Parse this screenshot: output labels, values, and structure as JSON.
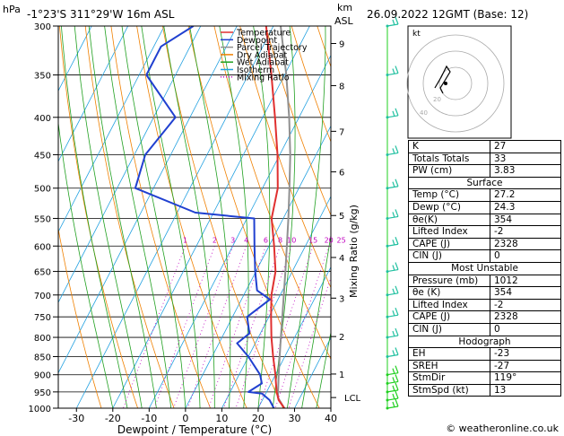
{
  "header": {
    "pressure_unit": "hPa",
    "location": "-1°23'S 311°29'W 16m ASL",
    "height_unit": "km",
    "height_unit2": "ASL",
    "datetime": "26.09.2022 12GMT (Base: 12)"
  },
  "chart_data": {
    "type": "skew-t log-p",
    "xlabel": "Dewpoint / Temperature (°C)",
    "ylabel": "hPa",
    "mixing_ratio_axis_label": "Mixing Ratio (g/kg)",
    "xlim": [
      -35,
      40
    ],
    "ylim": [
      1000,
      300
    ],
    "skew_degC_per_ln_p": 45,
    "x_ticks": [
      -30,
      -20,
      -10,
      0,
      10,
      20,
      30,
      40
    ],
    "pressure_ticks": [
      300,
      350,
      400,
      450,
      500,
      550,
      600,
      650,
      700,
      750,
      800,
      850,
      900,
      950,
      1000
    ],
    "height_ticks": [
      {
        "km": 9,
        "p": 317
      },
      {
        "km": 8,
        "p": 362
      },
      {
        "km": 7,
        "p": 418
      },
      {
        "km": 6,
        "p": 475
      },
      {
        "km": 5,
        "p": 545
      },
      {
        "km": 4,
        "p": 622
      },
      {
        "km": 3,
        "p": 707
      },
      {
        "km": 2,
        "p": 798
      },
      {
        "km": 1,
        "p": 898
      }
    ],
    "lcl": {
      "label": "LCL",
      "p": 967
    },
    "mixing_ratio_labels": [
      {
        "text": "1",
        "g_kg": 1
      },
      {
        "text": "2",
        "g_kg": 2
      },
      {
        "text": "3",
        "g_kg": 3
      },
      {
        "text": "4",
        "g_kg": 4
      },
      {
        "text": "6",
        "g_kg": 6
      },
      {
        "text": "8",
        "g_kg": 8
      },
      {
        "text": "10",
        "g_kg": 10
      },
      {
        "text": "15",
        "g_kg": 15
      },
      {
        "text": "20",
        "g_kg": 20
      },
      {
        "text": "25",
        "g_kg": 25
      }
    ],
    "legend": [
      {
        "name": "Temperature",
        "color": "#e03030",
        "dash": "solid"
      },
      {
        "name": "Dewpoint",
        "color": "#2040d0",
        "dash": "solid"
      },
      {
        "name": "Parcel Trajectory",
        "color": "#909090",
        "dash": "solid"
      },
      {
        "name": "Dry Adiabat",
        "color": "#f08000",
        "dash": "solid"
      },
      {
        "name": "Wet Adiabat",
        "color": "#20a020",
        "dash": "solid"
      },
      {
        "name": "Isotherm",
        "color": "#20a0e0",
        "dash": "solid"
      },
      {
        "name": "Mixing Ratio",
        "color": "#c000c0",
        "dash": "dotted"
      }
    ],
    "temperature": [
      {
        "p": 1000,
        "t": 27.2
      },
      {
        "p": 975,
        "t": 24.5
      },
      {
        "p": 950,
        "t": 22.8
      },
      {
        "p": 925,
        "t": 21.4
      },
      {
        "p": 900,
        "t": 20.0
      },
      {
        "p": 850,
        "t": 16.8
      },
      {
        "p": 800,
        "t": 13.6
      },
      {
        "p": 750,
        "t": 10.6
      },
      {
        "p": 700,
        "t": 7.6
      },
      {
        "p": 650,
        "t": 5.4
      },
      {
        "p": 600,
        "t": 1.4
      },
      {
        "p": 550,
        "t": -3.2
      },
      {
        "p": 500,
        "t": -5.8
      },
      {
        "p": 450,
        "t": -10.6
      },
      {
        "p": 400,
        "t": -16.6
      },
      {
        "p": 350,
        "t": -23.6
      },
      {
        "p": 300,
        "t": -32.0
      }
    ],
    "dewpoint": [
      {
        "p": 1000,
        "t": 24.3
      },
      {
        "p": 975,
        "t": 22.0
      },
      {
        "p": 955,
        "t": 19.0
      },
      {
        "p": 950,
        "t": 15.0
      },
      {
        "p": 925,
        "t": 17.5
      },
      {
        "p": 900,
        "t": 15.8
      },
      {
        "p": 850,
        "t": 10.0
      },
      {
        "p": 815,
        "t": 5.0
      },
      {
        "p": 790,
        "t": 7.0
      },
      {
        "p": 750,
        "t": 4.0
      },
      {
        "p": 710,
        "t": 7.8
      },
      {
        "p": 690,
        "t": 3.0
      },
      {
        "p": 650,
        "t": -0.2
      },
      {
        "p": 600,
        "t": -4.0
      },
      {
        "p": 550,
        "t": -8.0
      },
      {
        "p": 540,
        "t": -25.0
      },
      {
        "p": 500,
        "t": -45.0
      },
      {
        "p": 450,
        "t": -47.0
      },
      {
        "p": 400,
        "t": -44.0
      },
      {
        "p": 350,
        "t": -58.0
      },
      {
        "p": 320,
        "t": -58.0
      },
      {
        "p": 300,
        "t": -52.0
      }
    ],
    "parcel": [
      {
        "p": 1000,
        "t": 27.2
      },
      {
        "p": 967,
        "t": 23.9
      },
      {
        "p": 900,
        "t": 20.9
      },
      {
        "p": 850,
        "t": 18.6
      },
      {
        "p": 800,
        "t": 16.2
      },
      {
        "p": 750,
        "t": 13.7
      },
      {
        "p": 700,
        "t": 11.0
      },
      {
        "p": 650,
        "t": 8.1
      },
      {
        "p": 600,
        "t": 4.9
      },
      {
        "p": 550,
        "t": 1.4
      },
      {
        "p": 500,
        "t": -2.6
      },
      {
        "p": 450,
        "t": -7.1
      },
      {
        "p": 400,
        "t": -12.7
      },
      {
        "p": 350,
        "t": -19.5
      },
      {
        "p": 300,
        "t": -28.0
      }
    ],
    "wind_profile_pressures": [
      1000,
      975,
      950,
      925,
      900,
      850,
      800,
      750,
      700,
      650,
      600,
      550,
      500,
      450,
      400,
      350,
      300
    ],
    "hodograph": {
      "label": "kt",
      "ring_labels": [
        "20",
        "40"
      ]
    },
    "indices": {
      "K": "27",
      "Totals Totals": "33",
      "PW (cm)": "3.83",
      "surface": {
        "Temp (°C)": "27.2",
        "Dewp (°C)": "24.3",
        "θe(K)": "354",
        "Lifted Index": "-2",
        "CAPE (J)": "2328",
        "CIN (J)": "0"
      },
      "most_unstable": {
        "Pressure (mb)": "1012",
        "θe (K)": "354",
        "Lifted Index": "-2",
        "CAPE (J)": "2328",
        "CIN (J)": "0"
      },
      "hodograph": {
        "EH": "-23",
        "SREH": "-27",
        "StmDir": "119°",
        "StmSpd (kt)": "13"
      }
    }
  },
  "table": {
    "k_label": "K",
    "k_value": "27",
    "tt_label": "Totals Totals",
    "tt_value": "33",
    "pw_label": "PW (cm)",
    "pw_value": "3.83",
    "surface_header": "Surface",
    "s_temp_label": "Temp (°C)",
    "s_temp_value": "27.2",
    "s_dewp_label": "Dewp (°C)",
    "s_dewp_value": "24.3",
    "s_theta_label": "θe(K)",
    "s_theta_value": "354",
    "s_li_label": "Lifted Index",
    "s_li_value": "-2",
    "s_cape_label": "CAPE (J)",
    "s_cape_value": "2328",
    "s_cin_label": "CIN (J)",
    "s_cin_value": "0",
    "mu_header": "Most Unstable",
    "mu_p_label": "Pressure (mb)",
    "mu_p_value": "1012",
    "mu_theta_label": "θe (K)",
    "mu_theta_value": "354",
    "mu_li_label": "Lifted Index",
    "mu_li_value": "-2",
    "mu_cape_label": "CAPE (J)",
    "mu_cape_value": "2328",
    "mu_cin_label": "CIN (J)",
    "mu_cin_value": "0",
    "hodo_header": "Hodograph",
    "eh_label": "EH",
    "eh_value": "-23",
    "sreh_label": "SREH",
    "sreh_value": "-27",
    "stmdir_label": "StmDir",
    "stmdir_value": "119°",
    "stmspd_label": "StmSpd (kt)",
    "stmspd_value": "13"
  },
  "credit": "© weatheronline.co.uk"
}
